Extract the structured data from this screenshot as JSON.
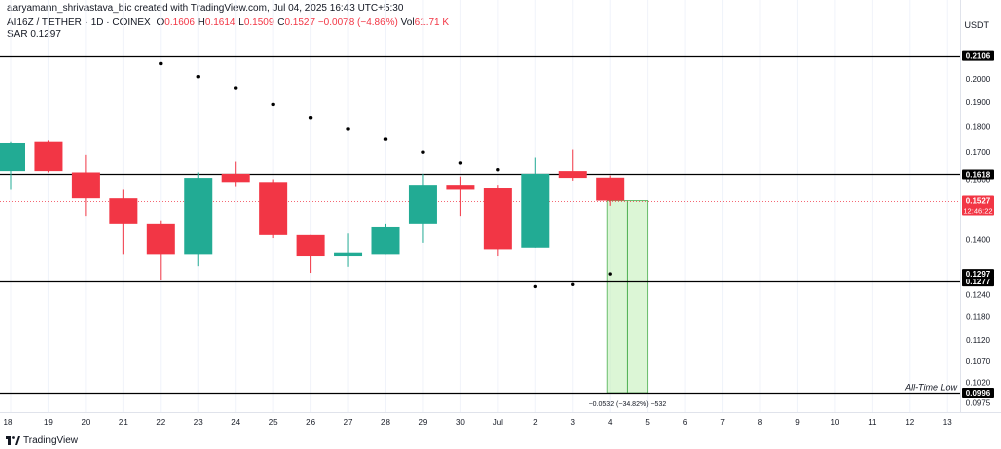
{
  "header": {
    "credit": "aaryamann_shrivastava_bic created with TradingView.com, Jul 04, 2025 16:43 UTC+5:30",
    "symbol": "AI16Z / TETHER · 1D · COINEX",
    "open_label": "O",
    "open": "0.1606",
    "high_label": "H",
    "high": "0.1614",
    "low_label": "L",
    "low": "0.1509",
    "close_label": "C",
    "close": "0.1527",
    "change": "−0.0078 (−4.86%)",
    "vol_label": "Vol",
    "vol": "61.71 K",
    "sar_label": "SAR",
    "sar": "0.1297"
  },
  "currency": "USDT",
  "brand": "TradingView",
  "colors": {
    "up": "#22ab94",
    "down": "#f23645",
    "sar": "#000000",
    "hline": "#000000",
    "measure_fill": "#bfeeb4",
    "measure_line": "#4caf50",
    "price_badge": "#f23645"
  },
  "chart_data": {
    "type": "candlestick",
    "title": "AI16Z / TETHER · 1D · COINEX",
    "y_axis": {
      "ticks": [
        0.2,
        0.19,
        0.18,
        0.17,
        0.16,
        0.14,
        0.124,
        0.118,
        0.112,
        0.107,
        0.102,
        0.0975
      ],
      "tick_labels": [
        "0.2000",
        "0.1900",
        "0.1800",
        "0.1700",
        "0.1600",
        "0.1400",
        "0.1240",
        "0.1180",
        "0.1120",
        "0.1070",
        "0.1020",
        "0.0975"
      ],
      "range": [
        0.0955,
        0.22
      ],
      "scale": "log"
    },
    "x_axis": {
      "labels": [
        "18",
        "19",
        "20",
        "21",
        "22",
        "23",
        "24",
        "25",
        "26",
        "27",
        "28",
        "29",
        "30",
        "Jul",
        "2",
        "3",
        "4",
        "5",
        "6",
        "7",
        "8",
        "9",
        "10",
        "11",
        "12",
        "13"
      ]
    },
    "candles": [
      {
        "date": "18",
        "open": 0.163,
        "high": 0.174,
        "low": 0.1565,
        "close": 0.1735
      },
      {
        "date": "19",
        "open": 0.174,
        "high": 0.1745,
        "low": 0.1625,
        "close": 0.163
      },
      {
        "date": "20",
        "open": 0.1625,
        "high": 0.169,
        "low": 0.1475,
        "close": 0.1535
      },
      {
        "date": "21",
        "open": 0.1535,
        "high": 0.1565,
        "low": 0.1355,
        "close": 0.145
      },
      {
        "date": "22",
        "open": 0.145,
        "high": 0.146,
        "low": 0.128,
        "close": 0.1355
      },
      {
        "date": "23",
        "open": 0.1355,
        "high": 0.1625,
        "low": 0.132,
        "close": 0.1605
      },
      {
        "date": "24",
        "open": 0.162,
        "high": 0.1665,
        "low": 0.1575,
        "close": 0.159
      },
      {
        "date": "25",
        "open": 0.159,
        "high": 0.16,
        "low": 0.1405,
        "close": 0.1415
      },
      {
        "date": "26",
        "open": 0.1415,
        "high": 0.1415,
        "low": 0.13,
        "close": 0.135
      },
      {
        "date": "27",
        "open": 0.135,
        "high": 0.142,
        "low": 0.1318,
        "close": 0.136
      },
      {
        "date": "28",
        "open": 0.1355,
        "high": 0.145,
        "low": 0.1355,
        "close": 0.144
      },
      {
        "date": "29",
        "open": 0.145,
        "high": 0.162,
        "low": 0.139,
        "close": 0.158
      },
      {
        "date": "30",
        "open": 0.158,
        "high": 0.161,
        "low": 0.1475,
        "close": 0.1565
      },
      {
        "date": "Jul",
        "open": 0.157,
        "high": 0.158,
        "low": 0.135,
        "close": 0.137
      },
      {
        "date": "2",
        "open": 0.1375,
        "high": 0.168,
        "low": 0.1375,
        "close": 0.162
      },
      {
        "date": "3",
        "open": 0.163,
        "high": 0.171,
        "low": 0.1595,
        "close": 0.1605
      },
      {
        "date": "4",
        "open": 0.1606,
        "high": 0.1614,
        "low": 0.1509,
        "close": 0.1527
      }
    ],
    "sar": [
      {
        "date": "22",
        "value": 0.207
      },
      {
        "date": "23",
        "value": 0.201
      },
      {
        "date": "24",
        "value": 0.196
      },
      {
        "date": "25",
        "value": 0.189
      },
      {
        "date": "26",
        "value": 0.1835
      },
      {
        "date": "27",
        "value": 0.179
      },
      {
        "date": "28",
        "value": 0.175
      },
      {
        "date": "29",
        "value": 0.17
      },
      {
        "date": "30",
        "value": 0.166
      },
      {
        "date": "Jul",
        "value": 0.1635
      },
      {
        "date": "2",
        "value": 0.1262
      },
      {
        "date": "3",
        "value": 0.1268
      },
      {
        "date": "4",
        "value": 0.1297
      }
    ],
    "horizontal_lines": [
      {
        "price": 0.2106,
        "label": "0.2106"
      },
      {
        "price": 0.1618,
        "label": "0.1618"
      },
      {
        "price": 0.1277,
        "label": "0.1277"
      },
      {
        "price": 0.0996,
        "label": "0.0996",
        "annotation": "All-Time Low"
      }
    ],
    "sar_badge": {
      "price": 0.1297,
      "label": "0.1297"
    },
    "last_price": {
      "price": 0.1527,
      "label": "0.1527",
      "countdown": "12:46:22"
    },
    "measure": {
      "from_price": 0.1527,
      "to_price": 0.0996,
      "from_date": "4",
      "to_date": "5",
      "label": "−0.0532 (−34.82%) −532"
    }
  }
}
